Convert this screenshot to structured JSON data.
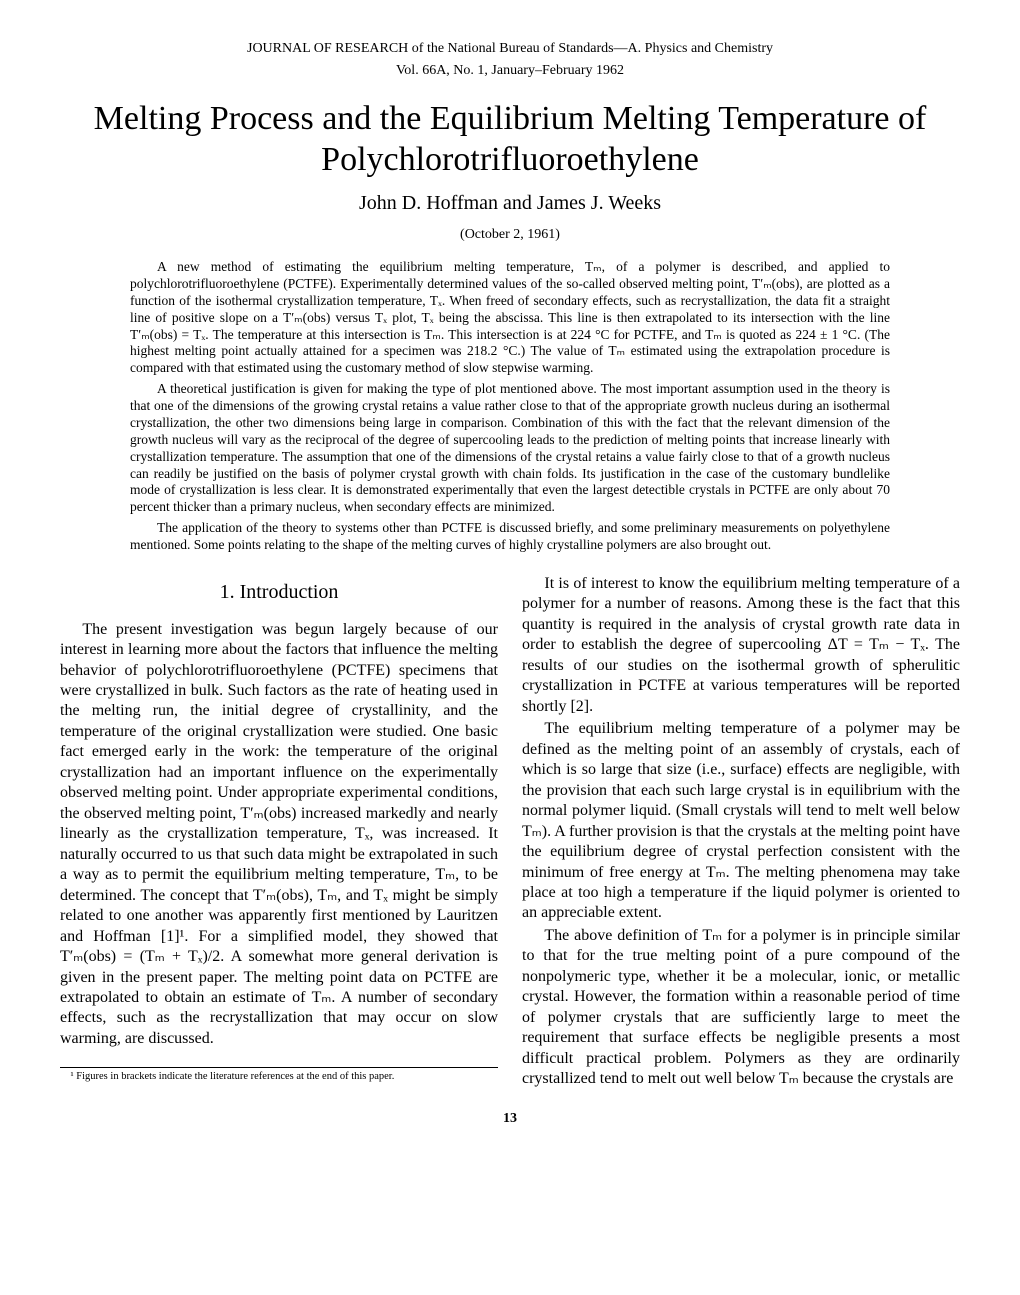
{
  "header": {
    "journal_line": "JOURNAL OF RESEARCH of the National Bureau of Standards—A. Physics and Chemistry",
    "issue_line": "Vol. 66A, No. 1, January–February 1962"
  },
  "title": "Melting Process and the Equilibrium Melting Temperature of Polychlorotrifluoroethylene",
  "authors": "John D. Hoffman and James J. Weeks",
  "date": "(October 2, 1961)",
  "abstract": {
    "p1": "A new method of estimating the equilibrium melting temperature, Tₘ, of a polymer is described, and applied to polychlorotrifluoroethylene (PCTFE). Experimentally determined values of the so-called observed melting point, T′ₘ(obs), are plotted as a function of the isothermal crystallization temperature, Tₓ. When freed of secondary effects, such as recrystallization, the data fit a straight line of positive slope on a T′ₘ(obs) versus Tₓ plot, Tₓ being the abscissa. This line is then extrapolated to its intersection with the line T′ₘ(obs) = Tₓ. The temperature at this intersection is Tₘ. This intersection is at 224 °C for PCTFE, and Tₘ is quoted as 224 ± 1 °C. (The highest melting point actually attained for a specimen was 218.2 °C.) The value of Tₘ estimated using the extrapolation procedure is compared with that estimated using the customary method of slow stepwise warming.",
    "p2": "A theoretical justification is given for making the type of plot mentioned above. The most important assumption used in the theory is that one of the dimensions of the growing crystal retains a value rather close to that of the appropriate growth nucleus during an isothermal crystallization, the other two dimensions being large in comparison. Combination of this with the fact that the relevant dimension of the growth nucleus will vary as the reciprocal of the degree of supercooling leads to the prediction of melting points that increase linearly with crystallization temperature. The assumption that one of the dimensions of the crystal retains a value fairly close to that of a growth nucleus can readily be justified on the basis of polymer crystal growth with chain folds. Its justification in the case of the customary bundlelike mode of crystallization is less clear. It is demonstrated experimentally that even the largest detectible crystals in PCTFE are only about 70 percent thicker than a primary nucleus, when secondary effects are minimized.",
    "p3": "The application of the theory to systems other than PCTFE is discussed briefly, and some preliminary measurements on polyethylene mentioned. Some points relating to the shape of the melting curves of highly crystalline polymers are also brought out."
  },
  "section1": {
    "heading": "1. Introduction",
    "left_p1": "The present investigation was begun largely because of our interest in learning more about the factors that influence the melting behavior of polychlorotrifluoroethylene (PCTFE) specimens that were crystallized in bulk. Such factors as the rate of heating used in the melting run, the initial degree of crystallinity, and the temperature of the original crystallization were studied. One basic fact emerged early in the work: the temperature of the original crystallization had an important influence on the experimentally observed melting point. Under appropriate experimental conditions, the observed melting point, T′ₘ(obs) increased markedly and nearly linearly as the crystallization temperature, Tₓ, was increased. It naturally occurred to us that such data might be extrapolated in such a way as to permit the equilibrium melting temperature, Tₘ, to be determined. The concept that T′ₘ(obs), Tₘ, and Tₓ might be simply related to one another was apparently first mentioned by Lauritzen and Hoffman [1]¹. For a simplified model, they showed that T′ₘ(obs) = (Tₘ + Tₓ)/2. A somewhat more general derivation is given in the present paper. The melting point data on PCTFE are extrapolated to obtain an estimate of Tₘ. A number of secondary effects, such as the recrystallization that may occur on slow warming, are discussed.",
    "right_p1": "It is of interest to know the equilibrium melting temperature of a polymer for a number of reasons. Among these is the fact that this quantity is required in the analysis of crystal growth rate data in order to establish the degree of supercooling ΔT = Tₘ − Tₓ. The results of our studies on the isothermal growth of spherulitic crystallization in PCTFE at various temperatures will be reported shortly [2].",
    "right_p2": "The equilibrium melting temperature of a polymer may be defined as the melting point of an assembly of crystals, each of which is so large that size (i.e., surface) effects are negligible, with the provision that each such large crystal is in equilibrium with the normal polymer liquid. (Small crystals will tend to melt well below Tₘ). A further provision is that the crystals at the melting point have the equilibrium degree of crystal perfection consistent with the minimum of free energy at Tₘ. The melting phenomena may take place at too high a temperature if the liquid polymer is oriented to an appreciable extent.",
    "right_p3": "The above definition of Tₘ for a polymer is in principle similar to that for the true melting point of a pure compound of the nonpolymeric type, whether it be a molecular, ionic, or metallic crystal. However, the formation within a reasonable period of time of polymer crystals that are sufficiently large to meet the requirement that surface effects be negligible presents a most difficult practical problem. Polymers as they are ordinarily crystallized tend to melt out well below Tₘ because the crystals are"
  },
  "footnote": "¹ Figures in brackets indicate the literature references at the end of this paper.",
  "page_number": "13"
}
